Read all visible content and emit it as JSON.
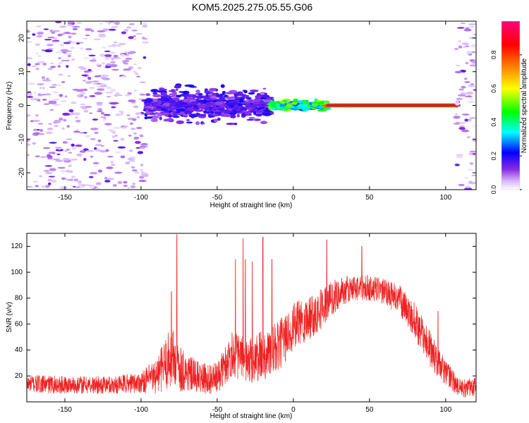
{
  "figure_title": "KOM5.2025.275.05.55.G06",
  "colors": {
    "snr_line": "#ee2222",
    "axis": "#000000",
    "background": "#ffffff"
  },
  "chart_data": [
    {
      "type": "heatmap",
      "title": "KOM5.2025.275.05.55.G06",
      "xlabel": "Height of straight line (km)",
      "ylabel": "Frequency (Hz)",
      "xlim": [
        -175,
        120
      ],
      "ylim": [
        -25,
        25
      ],
      "xticks": [
        -150,
        -100,
        -50,
        0,
        50,
        100
      ],
      "yticks": [
        -20,
        -10,
        0,
        10,
        20
      ],
      "colorbar": {
        "label": "Normalized spectral amplitude",
        "range": [
          0,
          1
        ],
        "ticks": [
          "0.0",
          "0.2",
          "0.4",
          "0.6",
          "0.8"
        ],
        "tick_values": [
          0.0,
          0.2,
          0.4,
          0.6,
          0.8
        ],
        "colors": [
          "#ffffff",
          "#c8a0ff",
          "#8a2be2",
          "#0000ff",
          "#00ffff",
          "#00ff00",
          "#ffff00",
          "#ff8800",
          "#ff0000",
          "#ff0080"
        ]
      },
      "features": [
        {
          "name": "background noise",
          "x_range": [
            -175,
            -97
          ],
          "freq_range": [
            -25,
            25
          ],
          "amplitude": 0.05
        },
        {
          "name": "scattered signal",
          "x_range": [
            -97,
            -15
          ],
          "freq_center": 0,
          "freq_width": 6,
          "amplitude": 0.15
        },
        {
          "name": "signal onset",
          "x_range": [
            -15,
            22
          ],
          "freq_center": 0,
          "freq_width": 1.5,
          "amplitude": 0.4
        },
        {
          "name": "strong carrier",
          "x_range": [
            22,
            108
          ],
          "freq_center": 0,
          "freq_width": 0.8,
          "amplitude": 0.95
        },
        {
          "name": "right edge noise",
          "x_range": [
            107,
            120
          ],
          "freq_range": [
            -25,
            25
          ],
          "amplitude": 0.05
        }
      ]
    },
    {
      "type": "line",
      "xlabel": "Height of straight line (km)",
      "ylabel": "SNR (v/v)",
      "xlim": [
        -175,
        120
      ],
      "ylim": [
        0,
        130
      ],
      "xticks": [
        -150,
        -100,
        -50,
        0,
        50,
        100
      ],
      "yticks": [
        20,
        40,
        60,
        80,
        100,
        120
      ],
      "series": [
        {
          "name": "SNR",
          "color": "#ee2222",
          "envelope_x": [
            -175,
            -150,
            -120,
            -100,
            -90,
            -80,
            -75,
            -70,
            -60,
            -50,
            -40,
            -30,
            -20,
            -10,
            0,
            10,
            20,
            30,
            40,
            50,
            60,
            70,
            80,
            90,
            100,
            110,
            120
          ],
          "envelope_mean": [
            14,
            13,
            13,
            15,
            20,
            35,
            28,
            22,
            18,
            18,
            38,
            30,
            36,
            42,
            58,
            65,
            74,
            84,
            88,
            88,
            85,
            78,
            62,
            40,
            22,
            10,
            12
          ],
          "envelope_spread": [
            7,
            7,
            7,
            8,
            14,
            25,
            20,
            15,
            12,
            12,
            18,
            18,
            20,
            20,
            18,
            18,
            16,
            12,
            10,
            10,
            10,
            12,
            14,
            14,
            10,
            7,
            8
          ],
          "spikes": [
            {
              "x": -76.5,
              "y": 129
            },
            {
              "x": -80,
              "y": 85
            },
            {
              "x": -38,
              "y": 110
            },
            {
              "x": -33,
              "y": 126
            },
            {
              "x": -31.5,
              "y": 110
            },
            {
              "x": -27,
              "y": 108
            },
            {
              "x": -20,
              "y": 127
            },
            {
              "x": -14,
              "y": 110
            },
            {
              "x": 22,
              "y": 125
            },
            {
              "x": 45,
              "y": 120
            },
            {
              "x": 95,
              "y": 70
            }
          ]
        }
      ]
    }
  ]
}
